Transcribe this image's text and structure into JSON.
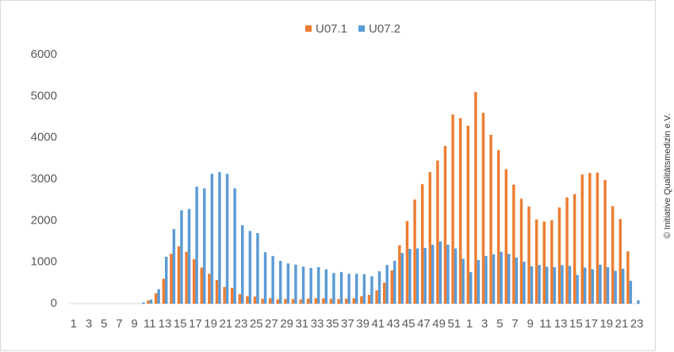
{
  "chart_data": {
    "type": "bar",
    "categories": [
      "1",
      null,
      "3",
      null,
      "5",
      null,
      "7",
      null,
      "9",
      null,
      "11",
      null,
      "13",
      null,
      "15",
      null,
      "17",
      null,
      "19",
      null,
      "21",
      null,
      "23",
      null,
      "25",
      null,
      "27",
      null,
      "29",
      null,
      "31",
      null,
      "33",
      null,
      "35",
      null,
      "37",
      null,
      "39",
      null,
      "41",
      null,
      "43",
      null,
      "45",
      null,
      "47",
      null,
      "49",
      null,
      "51",
      null,
      "1",
      null,
      "3",
      null,
      "5",
      null,
      "7",
      null,
      "9",
      null,
      "11",
      null,
      "13",
      null,
      "15",
      null,
      "17",
      null,
      "19",
      null,
      "21",
      null,
      "23"
    ],
    "series": [
      {
        "name": "U07.1",
        "color": "#ed7d31",
        "values": [
          0,
          0,
          0,
          0,
          0,
          0,
          0,
          0,
          0,
          0,
          80,
          250,
          600,
          1200,
          1380,
          1250,
          1070,
          870,
          720,
          570,
          400,
          380,
          230,
          180,
          170,
          120,
          130,
          100,
          110,
          110,
          100,
          120,
          130,
          130,
          120,
          110,
          120,
          130,
          180,
          210,
          320,
          500,
          800,
          1410,
          1990,
          2510,
          2880,
          3170,
          3450,
          3800,
          4560,
          4470,
          4290,
          5100,
          4600,
          4070,
          3700,
          3240,
          2870,
          2530,
          2340,
          2030,
          1980,
          2010,
          2320,
          2560,
          2640,
          3110,
          3150,
          3160,
          2980,
          2350,
          2040,
          1260,
          0
        ]
      },
      {
        "name": "U07.2",
        "color": "#5b9bd5",
        "values": [
          0,
          0,
          0,
          0,
          0,
          0,
          0,
          0,
          0,
          30,
          100,
          350,
          1130,
          1800,
          2250,
          2280,
          2820,
          2780,
          3130,
          3170,
          3130,
          2780,
          1890,
          1750,
          1700,
          1240,
          1150,
          1030,
          970,
          940,
          890,
          860,
          880,
          830,
          740,
          760,
          720,
          720,
          710,
          660,
          780,
          930,
          1030,
          1220,
          1320,
          1330,
          1340,
          1420,
          1500,
          1420,
          1330,
          1080,
          760,
          1050,
          1150,
          1190,
          1250,
          1200,
          1110,
          1010,
          900,
          930,
          890,
          880,
          930,
          910,
          690,
          870,
          830,
          940,
          880,
          790,
          840,
          550,
          80
        ]
      }
    ],
    "ylim": [
      0,
      6000
    ],
    "yticks": [
      0,
      1000,
      2000,
      3000,
      4000,
      5000,
      6000
    ],
    "grid": false,
    "legend": "top",
    "annotation": "© Initiative Qualitätsmedizin e.V."
  }
}
